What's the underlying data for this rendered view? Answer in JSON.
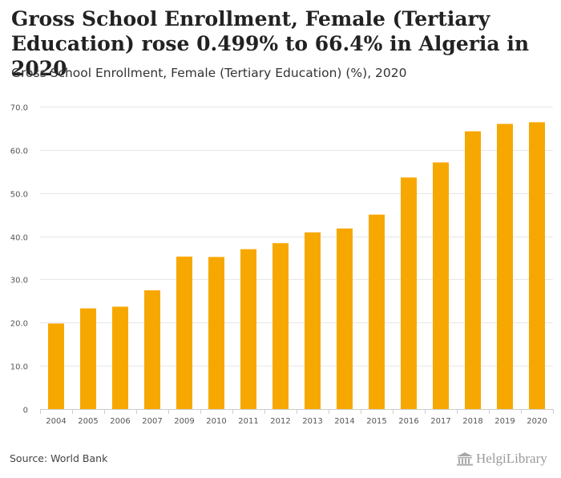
{
  "header": {
    "title": "Gross School Enrollment, Female (Tertiary Education) rose 0.499% to 66.4% in Algeria in 2020",
    "subtitle": "Gross School Enrollment, Female (Tertiary Education) (%), 2020"
  },
  "footer": {
    "source": "Source: World Bank",
    "brand": "HelgiLibrary"
  },
  "colors": {
    "bar": "#F7A800",
    "grid": "#e6e6e6",
    "axis": "#cccccc"
  },
  "chart_data": {
    "type": "bar",
    "title": "Gross School Enrollment, Female (Tertiary Education) (%), 2020",
    "xlabel": "",
    "ylabel": "",
    "grid": true,
    "legend": "none",
    "ylim": [
      0,
      70
    ],
    "y_ticks": [
      "0",
      "10.0",
      "20.0",
      "30.0",
      "40.0",
      "50.0",
      "60.0",
      "70.0"
    ],
    "categories": [
      "2004",
      "2005",
      "2006",
      "2007",
      "2009",
      "2010",
      "2011",
      "2012",
      "2013",
      "2014",
      "2015",
      "2016",
      "2017",
      "2018",
      "2019",
      "2020"
    ],
    "series": [
      {
        "name": "Gross School Enrollment, Female (Tertiary Education) (%)",
        "values": [
          19.8,
          23.3,
          23.7,
          27.5,
          35.3,
          35.2,
          37.0,
          38.4,
          40.9,
          41.8,
          45.0,
          53.6,
          57.1,
          64.3,
          66.0,
          66.4
        ]
      }
    ]
  }
}
